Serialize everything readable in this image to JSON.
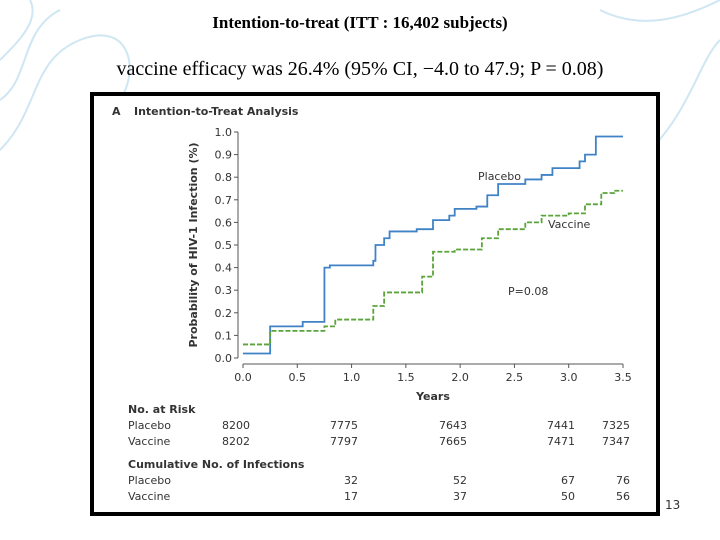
{
  "slide": {
    "title": "Intention-to-treat (ITT : 16,402 subjects)",
    "subtitle": "vaccine efficacy was 26.4% (95% CI, −4.0 to 47.9; P = 0.08)",
    "page_number": "13"
  },
  "chart_data": {
    "type": "step",
    "panel": "A",
    "title": "Intention-to-Treat Analysis",
    "x_label": "Years",
    "y_label": "Probability of HIV-1 Infection (%)",
    "annotations": [
      "P=0.08"
    ],
    "xlim": [
      0,
      3.5
    ],
    "ylim": [
      0,
      1
    ],
    "xticks": [
      {
        "value": 0,
        "label": "0.0"
      },
      0.5,
      {
        "value": 1,
        "label": "1.0"
      },
      1.5,
      {
        "value": 2,
        "label": "2.0"
      },
      2.5,
      {
        "value": 3,
        "label": "3.0"
      },
      3.5
    ],
    "yticks": [
      {
        "value": 0,
        "label": "0.0"
      },
      0.1,
      0.2,
      0.3,
      0.4,
      0.5,
      0.6,
      0.7,
      0.8,
      0.9,
      {
        "value": 1,
        "label": "1.0"
      }
    ],
    "series": [
      {
        "name": "Placebo",
        "color": "#3f82c6",
        "dashed": false,
        "x": [
          0,
          0.25,
          0.55,
          0.75,
          0.8,
          1.2,
          1.22,
          1.3,
          1.35,
          1.6,
          1.75,
          1.9,
          1.95,
          2.15,
          2.25,
          2.35,
          2.6,
          2.75,
          2.85,
          3.1,
          3.15,
          3.25,
          3.5
        ],
        "values": [
          0.02,
          0.14,
          0.16,
          0.4,
          0.41,
          0.43,
          0.5,
          0.53,
          0.56,
          0.57,
          0.61,
          0.63,
          0.66,
          0.67,
          0.72,
          0.77,
          0.79,
          0.81,
          0.84,
          0.87,
          0.9,
          0.98,
          0.98
        ]
      },
      {
        "name": "Vaccine",
        "color": "#5aa43a",
        "dashed": true,
        "x": [
          0,
          0.25,
          0.75,
          0.85,
          1.2,
          1.3,
          1.65,
          1.75,
          1.95,
          2.2,
          2.35,
          2.6,
          2.75,
          3.0,
          3.15,
          3.3,
          3.42,
          3.5
        ],
        "values": [
          0.06,
          0.12,
          0.14,
          0.17,
          0.23,
          0.29,
          0.36,
          0.47,
          0.48,
          0.53,
          0.57,
          0.6,
          0.63,
          0.64,
          0.68,
          0.73,
          0.74,
          0.74
        ]
      }
    ]
  },
  "risk_table": {
    "title": "No. at Risk",
    "rows": [
      [
        "Placebo",
        "8200",
        "7775",
        "7643",
        "7441",
        "7325"
      ],
      [
        "Vaccine",
        "8202",
        "7797",
        "7665",
        "7471",
        "7347"
      ]
    ]
  },
  "infection_table": {
    "title": "Cumulative No. of Infections",
    "rows": [
      [
        "Placebo",
        "32",
        "52",
        "67",
        "76"
      ],
      [
        "Vaccine",
        "17",
        "37",
        "50",
        "56"
      ]
    ]
  }
}
